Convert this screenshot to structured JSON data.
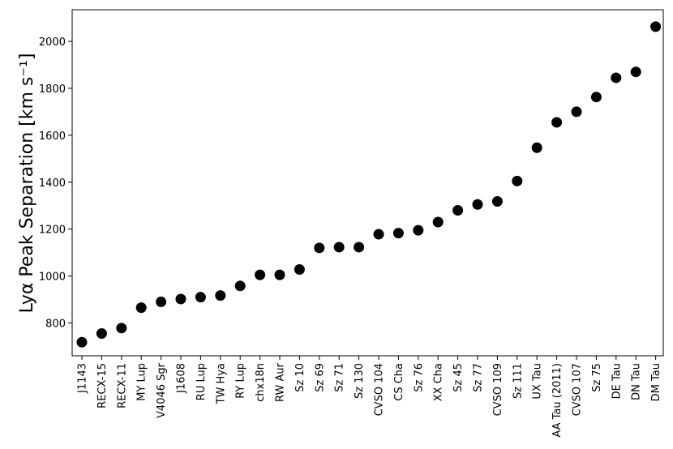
{
  "chart_data": {
    "type": "scatter",
    "ylabel": "Lyα Peak Separation [km s⁻¹]",
    "xlabel": "",
    "ylim": [
      660,
      2135
    ],
    "yticks": [
      800,
      1000,
      1200,
      1400,
      1600,
      1800,
      2000
    ],
    "grid": false,
    "marker_color": "#000000",
    "categories": [
      "J1143",
      "RECX-15",
      "RECX-11",
      "MY Lup",
      "V4046 Sgr",
      "J1608",
      "RU Lup",
      "TW Hya",
      "RY Lup",
      "chx18n",
      "RW Aur",
      "Sz 10",
      "Sz 69",
      "Sz 71",
      "Sz 130",
      "CVSO 104",
      "CS Cha",
      "Sz 76",
      "XX Cha",
      "Sz 45",
      "Sz 77",
      "CVSO 109",
      "Sz 111",
      "UX Tau",
      "AA Tau (2011)",
      "CVSO 107",
      "Sz 75",
      "DE Tau",
      "DN Tau",
      "DM Tau"
    ],
    "values": [
      718,
      755,
      778,
      865,
      890,
      902,
      910,
      917,
      958,
      1005,
      1005,
      1028,
      1120,
      1123,
      1123,
      1178,
      1183,
      1195,
      1230,
      1280,
      1305,
      1318,
      1405,
      1547,
      1655,
      1700,
      1763,
      1845,
      1870,
      2063
    ]
  }
}
